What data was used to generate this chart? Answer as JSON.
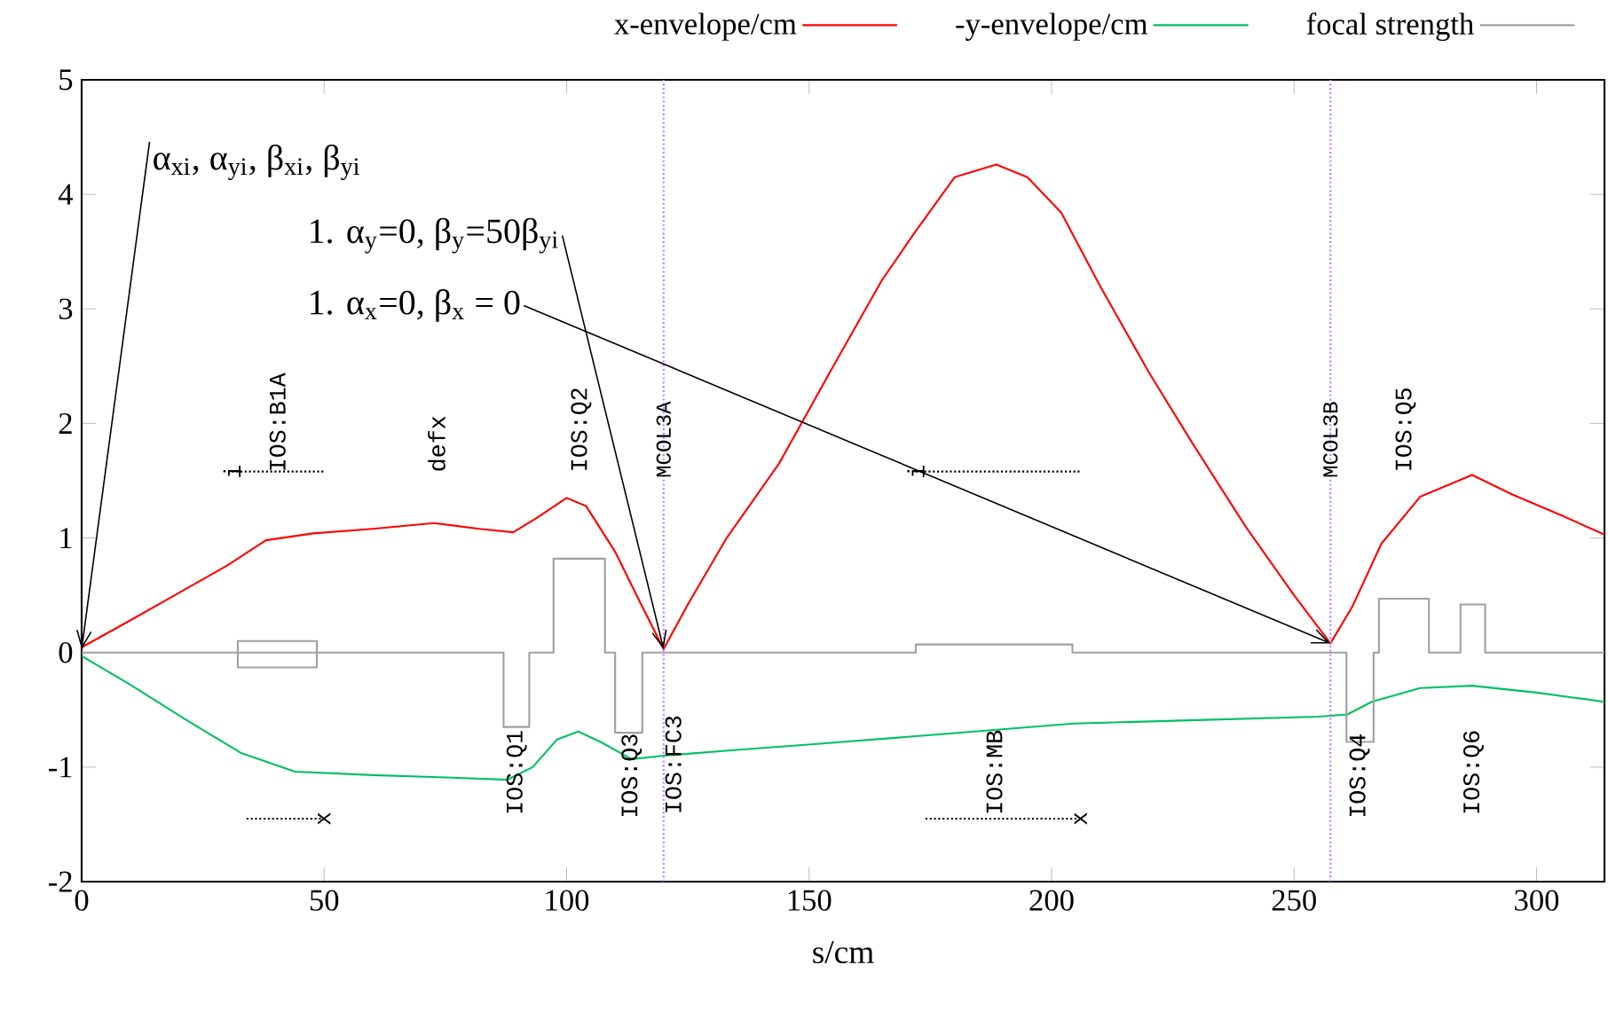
{
  "chart_data": {
    "type": "line",
    "xlabel": "s/cm",
    "xlim": [
      0,
      314
    ],
    "ylim": [
      -2,
      5
    ],
    "xticks": [
      0,
      50,
      100,
      150,
      200,
      250,
      300
    ],
    "yticks": [
      -2,
      -1,
      0,
      1,
      2,
      3,
      4,
      5
    ],
    "legend": "top",
    "series": [
      {
        "name": "x-envelope/cm",
        "color": "#ff0000",
        "x": [
          0,
          0.2,
          10,
          20,
          30,
          38,
          47.7,
          60,
          72.6,
          82,
          89,
          94,
          100,
          104,
          110,
          115,
          120,
          125,
          133,
          143.8,
          155,
          165,
          172,
          180,
          188.6,
          195,
          202,
          210,
          220,
          229,
          240,
          250,
          257.5,
          262,
          268,
          276,
          286.7,
          295,
          305,
          314
        ],
        "values": [
          0.03,
          0.05,
          0.28,
          0.52,
          0.76,
          0.98,
          1.04,
          1.08,
          1.13,
          1.08,
          1.05,
          1.18,
          1.35,
          1.28,
          0.88,
          0.45,
          0.03,
          0.42,
          1.0,
          1.65,
          2.5,
          3.25,
          3.68,
          4.15,
          4.26,
          4.15,
          3.84,
          3.2,
          2.45,
          1.83,
          1.1,
          0.5,
          0.08,
          0.4,
          0.95,
          1.36,
          1.55,
          1.38,
          1.2,
          1.03
        ]
      },
      {
        "name": "-y-envelope/cm",
        "color": "#00c060",
        "x": [
          0,
          10,
          22,
          33,
          44,
          60,
          75,
          87.8,
          93,
          98,
          102.4,
          107,
          113.4,
          120,
          135,
          151,
          175,
          204.6,
          230,
          255,
          261,
          266,
          276,
          286.7,
          300,
          314
        ],
        "values": [
          -0.03,
          -0.28,
          -0.6,
          -0.88,
          -1.04,
          -1.07,
          -1.09,
          -1.11,
          -1.0,
          -0.76,
          -0.69,
          -0.78,
          -0.93,
          -0.9,
          -0.85,
          -0.8,
          -0.72,
          -0.62,
          -0.59,
          -0.56,
          -0.54,
          -0.43,
          -0.31,
          -0.29,
          -0.35,
          -0.43
        ]
      },
      {
        "name": "focal strength",
        "color": "#a0a0a0",
        "x": [
          0,
          32.2,
          32.2,
          48.5,
          48.5,
          32.2,
          32.2,
          87,
          87,
          92.3,
          92.3,
          97.3,
          97.3,
          107.9,
          107.9,
          110,
          110,
          115.6,
          115.6,
          172,
          172,
          204.3,
          204.3,
          260.8,
          260.8,
          266.4,
          266.4,
          267.5,
          267.5,
          277.8,
          277.8,
          284.3,
          284.3,
          289.4,
          289.4,
          314
        ],
        "values": [
          0,
          0,
          0.1,
          0.1,
          -0.13,
          -0.13,
          0,
          0,
          -0.65,
          -0.65,
          0,
          0,
          0.82,
          0.82,
          0,
          0,
          -0.7,
          -0.7,
          0,
          0,
          0.07,
          0.07,
          0,
          0,
          -0.78,
          -0.78,
          0,
          0,
          0.47,
          0.47,
          0,
          0,
          0.42,
          0.42,
          0,
          0
        ]
      },
      {
        "color": "#000000",
        "line_style": "dotted",
        "x": [
          31,
          50
        ],
        "values": [
          1.58,
          1.58
        ]
      },
      {
        "color": "#000000",
        "line_style": "dotted",
        "x": [
          34,
          50
        ],
        "values": [
          -1.45,
          -1.45
        ]
      },
      {
        "color": "#000000",
        "line_style": "dotted",
        "x": [
          172,
          206
        ],
        "values": [
          1.58,
          1.58
        ]
      },
      {
        "color": "#000000",
        "line_style": "dotted",
        "x": [
          174,
          206
        ],
        "values": [
          -1.45,
          -1.45
        ]
      }
    ],
    "ref_lines": [
      {
        "axis": "x",
        "value": 120,
        "label": "MCOL3A",
        "color": "#c080ff",
        "line_style": "dotted"
      },
      {
        "axis": "x",
        "value": 257.5,
        "label": "MCOL3B",
        "color": "#c080ff",
        "line_style": "dotted"
      }
    ],
    "annotations": [
      {
        "text": "α$_{xi}$, α$_{yi}$, β$_{xi}$, β$_{yi}$",
        "x": 0,
        "y": 0.03
      },
      {
        "text": "1. α$_{y}$=0, β$_{y}$=50β$_{yi}$",
        "x": 120,
        "y": 0.03
      },
      {
        "text": "1. α$_{x}$=0, β$_{x}$ = 0",
        "x": 257.5,
        "y": 0.08
      },
      "IOS:B1A",
      "defx",
      "IOS:Q2",
      "IOS:Q5",
      "IOS:Q1",
      "IOS:Q3",
      "IOS:FC3",
      "IOS:MB",
      "IOS:Q4",
      "IOS:Q6",
      {
        "text": "i",
        "x": 31,
        "y": 1.58
      },
      {
        "text": "x",
        "x": 50,
        "y": -1.45
      },
      {
        "text": "i",
        "x": 172,
        "y": 1.58
      },
      {
        "text": "x",
        "x": 206,
        "y": -1.45
      }
    ]
  }
}
